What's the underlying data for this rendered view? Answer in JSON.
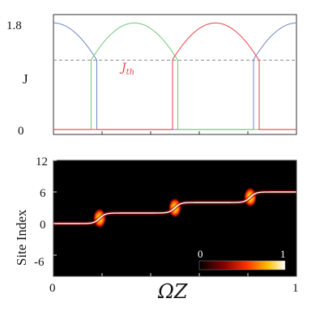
{
  "colors": {
    "blue": "#6f86c8",
    "green": "#74c77a",
    "red": "#e8434a",
    "threshold": "#8a8a8a",
    "background": "#000000",
    "path": "#ffffff"
  },
  "chart_data": [
    {
      "type": "line",
      "title": "",
      "xlabel": "",
      "ylabel": "J",
      "x_range": [
        0,
        1
      ],
      "ylim": [
        0,
        1.8
      ],
      "y_ticks": [
        "1.8",
        "0"
      ],
      "threshold": {
        "label_base": "J",
        "label_sub": "th",
        "value": 1.2
      },
      "series": [
        {
          "color_key": "blue",
          "peaks": [
            0.0,
            1.0
          ],
          "amplitude": 1.8,
          "halfwidth": 0.333
        },
        {
          "color_key": "green",
          "peaks": [
            0.333
          ],
          "amplitude": 1.8,
          "halfwidth": 0.333
        },
        {
          "color_key": "red",
          "peaks": [
            0.667
          ],
          "amplitude": 1.8,
          "halfwidth": 0.333
        }
      ],
      "floor_value": 0.08
    },
    {
      "type": "heatmap",
      "title": "",
      "xlabel": "ΩZ",
      "ylabel": "Site Index",
      "xlim": [
        0,
        1
      ],
      "ylim": [
        -10,
        12
      ],
      "x_ticks": [
        "0",
        "1"
      ],
      "y_ticks": [
        "12",
        "6",
        "0",
        "-6"
      ],
      "steps": [
        {
          "from": 0,
          "to": 2,
          "center": 0.19
        },
        {
          "from": 2,
          "to": 4,
          "center": 0.5
        },
        {
          "from": 4,
          "to": 6,
          "center": 0.81
        }
      ],
      "colorbar": {
        "min": "0",
        "max": "1"
      }
    }
  ]
}
